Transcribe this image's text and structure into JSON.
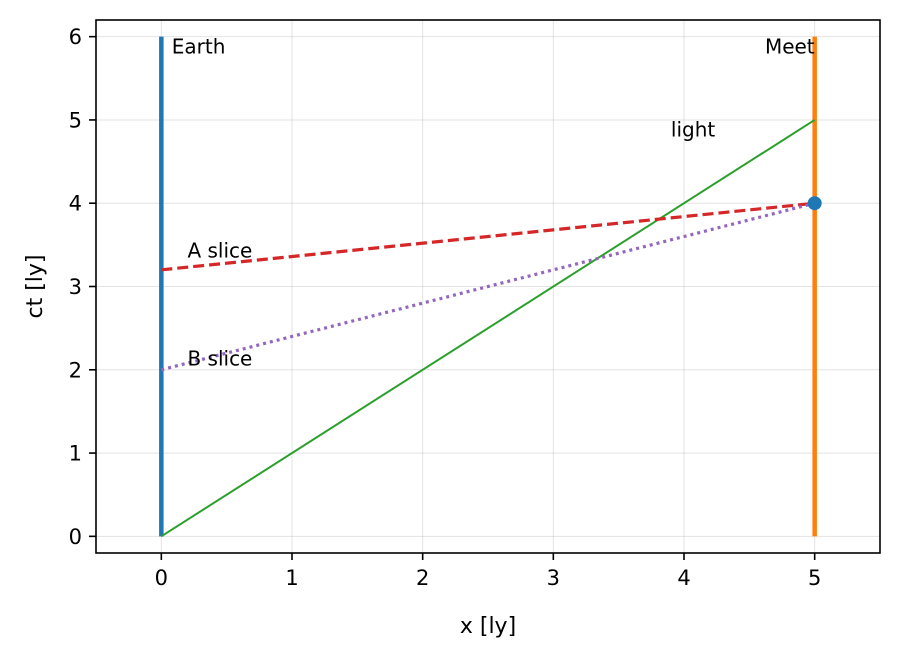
{
  "chart_data": {
    "type": "line",
    "xlabel": "x [ly]",
    "ylabel": "ct [ly]",
    "xlim": [
      -0.5,
      5.5
    ],
    "ylim": [
      -0.2,
      6.2
    ],
    "xticks": [
      0,
      1,
      2,
      3,
      4,
      5
    ],
    "yticks": [
      0,
      1,
      2,
      3,
      4,
      5,
      6
    ],
    "grid": true,
    "series": [
      {
        "key": "earth",
        "x": [
          0,
          0
        ],
        "y": [
          0,
          6
        ],
        "color": "#1f77b4",
        "style": "solid",
        "width": 4.5
      },
      {
        "key": "ship",
        "x": [
          5,
          5
        ],
        "y": [
          0,
          6
        ],
        "color": "#ff7f0e",
        "style": "solid",
        "width": 4.5
      },
      {
        "key": "light",
        "x": [
          0,
          5
        ],
        "y": [
          0,
          5
        ],
        "color": "#2ca02c",
        "style": "solid",
        "width": 2
      },
      {
        "key": "a-slice",
        "x": [
          0,
          5
        ],
        "y": [
          3.2,
          4
        ],
        "color": "#d62728",
        "style": "dashed",
        "width": 3.2
      },
      {
        "key": "b-slice",
        "x": [
          0,
          5
        ],
        "y": [
          2,
          4
        ],
        "color": "#9467bd",
        "style": "dotted",
        "width": 3.2
      }
    ],
    "points": [
      {
        "key": "meet-point",
        "x": 5,
        "y": 4,
        "color": "#1f77b4"
      }
    ],
    "annotations": [
      {
        "key": "earth",
        "text": "Earth",
        "x": 0.08,
        "y": 5.8,
        "anchor": "start"
      },
      {
        "key": "meet",
        "text": "Meet",
        "x": 5.0,
        "y": 5.8,
        "anchor": "end"
      },
      {
        "key": "light",
        "text": "light",
        "x": 3.9,
        "y": 4.8,
        "anchor": "start"
      },
      {
        "key": "a-slice",
        "text": "A slice",
        "x": 0.2,
        "y": 3.35,
        "anchor": "start"
      },
      {
        "key": "b-slice",
        "text": "B slice",
        "x": 0.2,
        "y": 2.05,
        "anchor": "start"
      }
    ]
  }
}
